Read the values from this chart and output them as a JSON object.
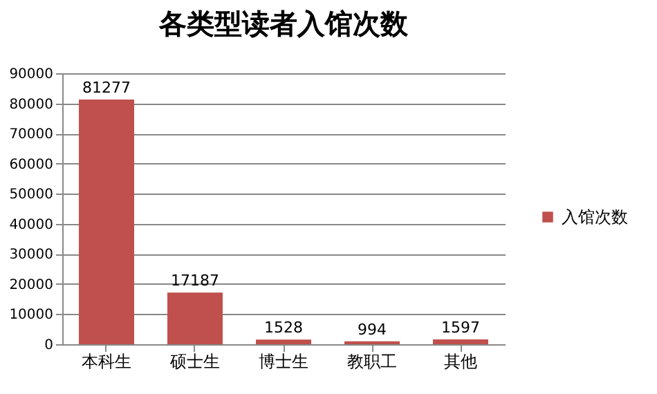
{
  "chart_data": {
    "type": "bar",
    "title": "各类型读者入馆次数",
    "categories": [
      "本科生",
      "硕士生",
      "博士生",
      "教职工",
      "其他"
    ],
    "series": [
      {
        "name": "入馆次数",
        "color": "#c0504d",
        "values": [
          81277,
          17187,
          1528,
          994,
          1597
        ]
      }
    ],
    "ylim": [
      0,
      90000
    ],
    "yticks": [
      0,
      10000,
      20000,
      30000,
      40000,
      50000,
      60000,
      70000,
      80000,
      90000
    ],
    "grid": "y",
    "legend": "right",
    "data_labels": true
  }
}
